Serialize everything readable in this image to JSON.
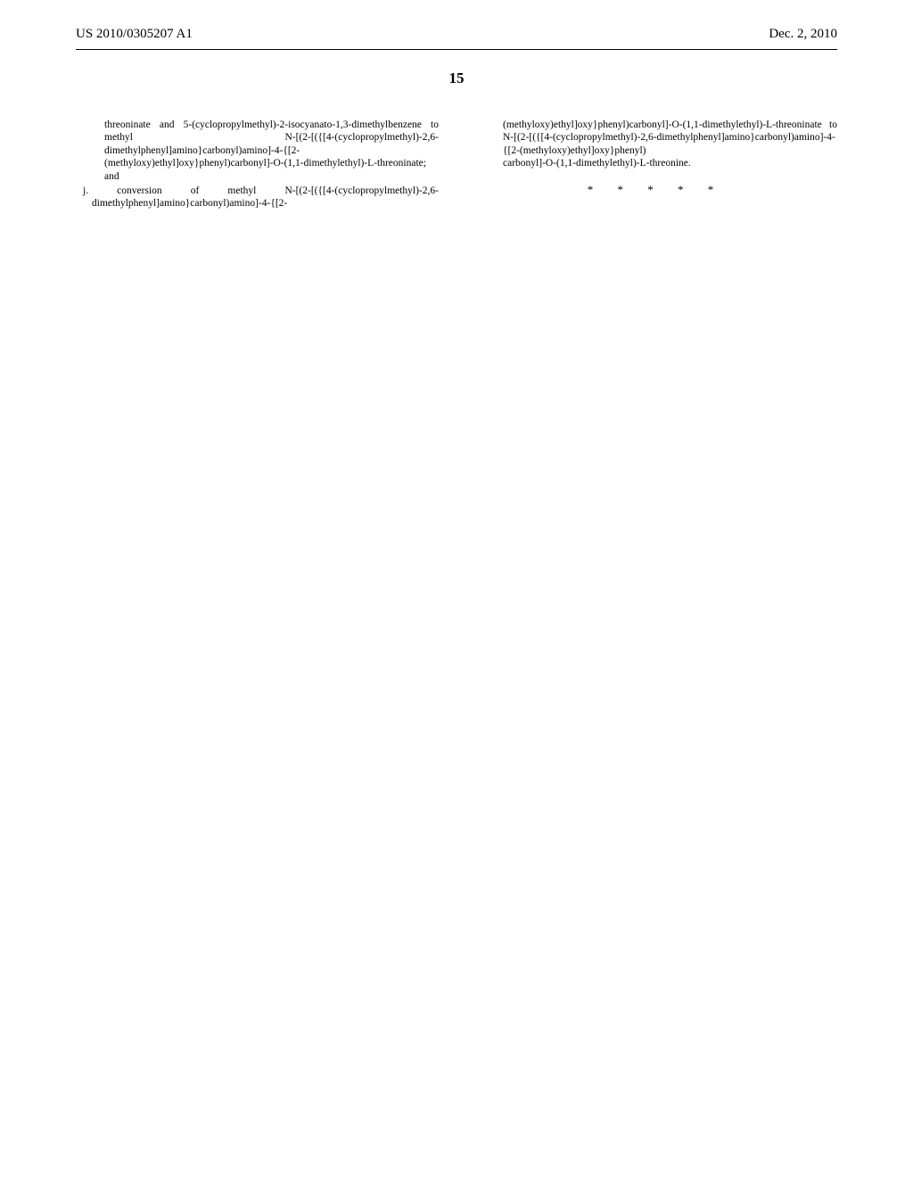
{
  "header": {
    "publication_number": "US 2010/0305207 A1",
    "publication_date": "Dec. 2, 2010"
  },
  "page_number": "15",
  "left_column": {
    "para1": "threoninate and 5-(cyclopropylmethyl)-2-isocyanato-1,3-dimethylbenzene to methyl N-[(2-[({[4-(cyclopropylmethyl)-2,6-dimethylphenyl]amino}carbonyl)amino]-4-{[2-(methyloxy)ethyl]oxy}phenyl)carbonyl]-O-(1,1-dimethylethyl)-L-threoninate; and",
    "item_j": "j. conversion of methyl N-[(2-[({[4-(cyclopropylmethyl)-2,6-dimethylphenyl]amino}carbonyl)amino]-4-{[2-"
  },
  "right_column": {
    "para1": "(methyloxy)ethyl]oxy}phenyl)carbonyl]-O-(1,1-dimethylethyl)-L-threoninate to N-[(2-[({[4-(cyclopropylmethyl)-2,6-dimethylphenyl]amino}carbonyl)amino]-4-{[2-(methyloxy)ethyl]oxy}phenyl)",
    "para2": "carbonyl]-O-(1,1-dimethylethyl)-L-threonine."
  },
  "asterisks": "* * * * *"
}
